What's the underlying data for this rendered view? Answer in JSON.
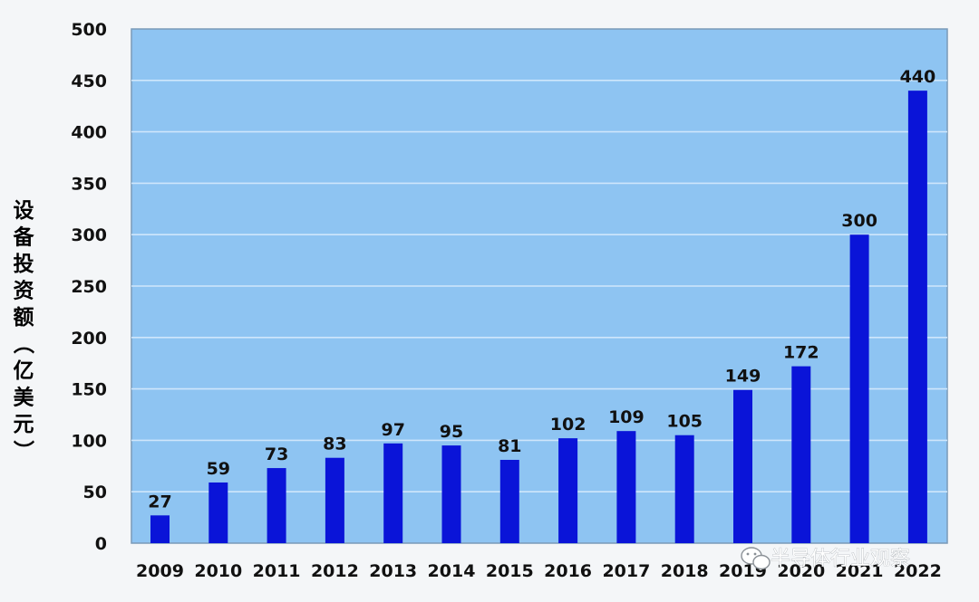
{
  "chart_data": {
    "type": "bar",
    "title": "",
    "xlabel": "",
    "ylabel": "设备投资额（亿美元）",
    "categories": [
      "2009",
      "2010",
      "2011",
      "2012",
      "2013",
      "2014",
      "2015",
      "2016",
      "2017",
      "2018",
      "2019",
      "2020",
      "2021",
      "2022"
    ],
    "values": [
      27,
      59,
      73,
      83,
      97,
      95,
      81,
      102,
      109,
      105,
      149,
      172,
      300,
      440
    ],
    "ylim": [
      0,
      500
    ],
    "yticks": [
      0,
      50,
      100,
      150,
      200,
      250,
      300,
      350,
      400,
      450,
      500
    ],
    "grid": true,
    "colors": {
      "bar": "#0a14d8",
      "plot_background": "#8ec4f2",
      "gridline": "#cfe6fb",
      "frame": "#7a9ab8"
    }
  },
  "watermark": {
    "text": "半导体行业观察",
    "icon": "wechat-icon"
  }
}
